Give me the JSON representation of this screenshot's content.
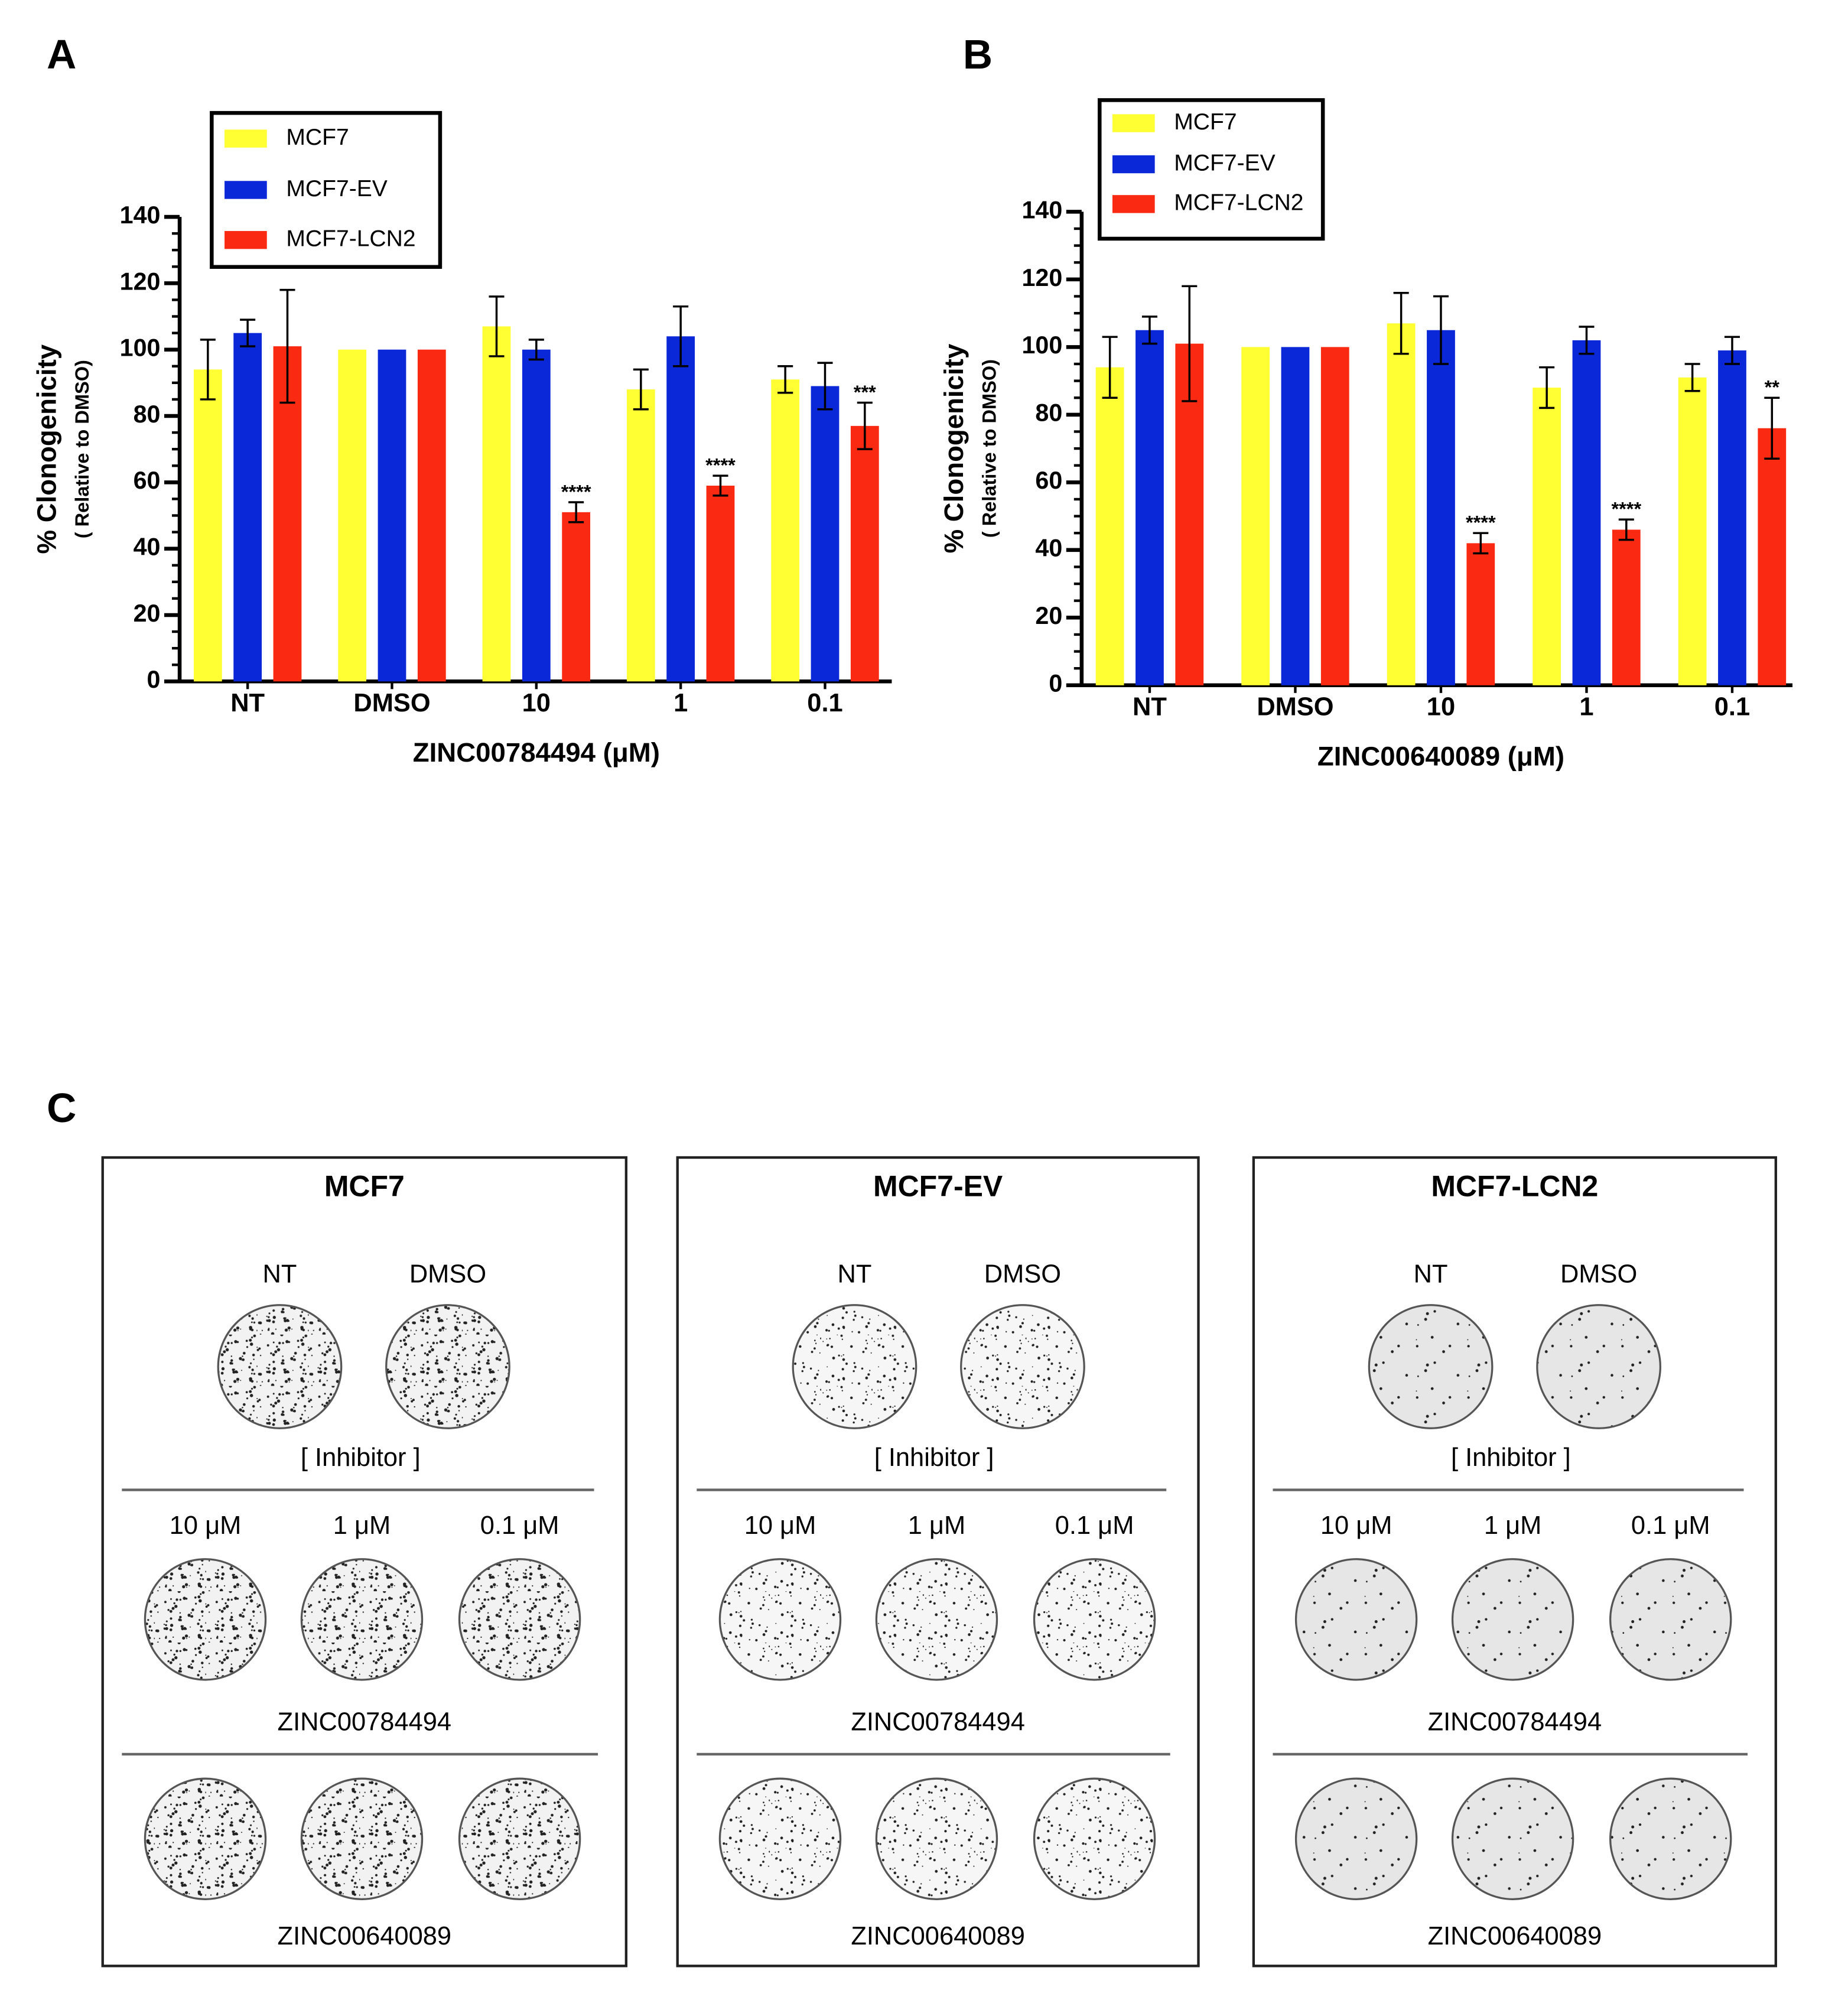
{
  "chart_data": [
    {
      "type": "bar",
      "panel": "A",
      "xlabel": "ZINC00784494 (μM)",
      "ylabel": "% Clonogenicity",
      "ylabel_sub": "( Relative to DMSO)",
      "categories": [
        "NT",
        "DMSO",
        "10",
        "1",
        "0.1"
      ],
      "series": [
        {
          "name": "MCF7",
          "color": "#ffff33",
          "values": [
            94,
            100,
            107,
            88,
            91
          ],
          "errors": [
            9,
            null,
            9,
            6,
            4
          ]
        },
        {
          "name": "MCF7-EV",
          "color": "#0a28d8",
          "values": [
            105,
            100,
            100,
            104,
            89
          ],
          "errors": [
            4,
            null,
            3,
            9,
            7
          ]
        },
        {
          "name": "MCF7-LCN2",
          "color": "#fa2a12",
          "values": [
            101,
            100,
            51,
            59,
            77
          ],
          "errors": [
            17,
            null,
            3,
            3,
            7
          ],
          "significance": [
            null,
            null,
            "****",
            "****",
            "***"
          ]
        }
      ],
      "ylim": [
        0,
        140
      ],
      "yticks": [
        0,
        20,
        40,
        60,
        80,
        100,
        120,
        140
      ],
      "yminorticks": [
        5,
        10,
        15,
        25,
        30,
        35,
        45,
        50,
        55,
        65,
        70,
        75,
        85,
        90,
        95,
        105,
        110,
        115,
        125,
        130,
        135
      ],
      "legend": "upper left"
    },
    {
      "type": "bar",
      "panel": "B",
      "xlabel": "ZINC00640089 (μM)",
      "ylabel": "% Clonogenicity",
      "ylabel_sub": "( Relative to DMSO)",
      "categories": [
        "NT",
        "DMSO",
        "10",
        "1",
        "0.1"
      ],
      "series": [
        {
          "name": "MCF7",
          "color": "#ffff33",
          "values": [
            94,
            100,
            107,
            88,
            91
          ],
          "errors": [
            9,
            null,
            9,
            6,
            4
          ]
        },
        {
          "name": "MCF7-EV",
          "color": "#0a28d8",
          "values": [
            105,
            100,
            105,
            102,
            99
          ],
          "errors": [
            4,
            null,
            10,
            4,
            4
          ]
        },
        {
          "name": "MCF7-LCN2",
          "color": "#fa2a12",
          "values": [
            101,
            100,
            42,
            46,
            76
          ],
          "errors": [
            17,
            null,
            3,
            3,
            9
          ],
          "significance": [
            null,
            null,
            "****",
            "****",
            "**"
          ]
        }
      ],
      "ylim": [
        0,
        140
      ],
      "yticks": [
        0,
        20,
        40,
        60,
        80,
        100,
        120,
        140
      ],
      "yminorticks": [
        5,
        10,
        15,
        25,
        30,
        35,
        45,
        50,
        55,
        65,
        70,
        75,
        85,
        90,
        95,
        105,
        110,
        115,
        125,
        130,
        135
      ],
      "legend": "upper left"
    }
  ],
  "panel_c": {
    "label": "C",
    "groups": [
      {
        "title": "MCF7",
        "untreated": [
          "NT",
          "DMSO"
        ],
        "inhibitor_label": "[ Inhibitor ]",
        "doses": [
          "10 μM",
          "1 μM",
          "0.1 μM"
        ],
        "compounds": [
          "ZINC00784494",
          "ZINC00640089"
        ]
      },
      {
        "title": "MCF7-EV",
        "untreated": [
          "NT",
          "DMSO"
        ],
        "inhibitor_label": "[ Inhibitor ]",
        "doses": [
          "10 μM",
          "1 μM",
          "0.1 μM"
        ],
        "compounds": [
          "ZINC00784494",
          "ZINC00640089"
        ]
      },
      {
        "title": "MCF7-LCN2",
        "untreated": [
          "NT",
          "DMSO"
        ],
        "inhibitor_label": "[ Inhibitor ]",
        "doses": [
          "10 μM",
          "1 μM",
          "0.1 μM"
        ],
        "compounds": [
          "ZINC00784494",
          "ZINC00640089"
        ]
      }
    ]
  }
}
